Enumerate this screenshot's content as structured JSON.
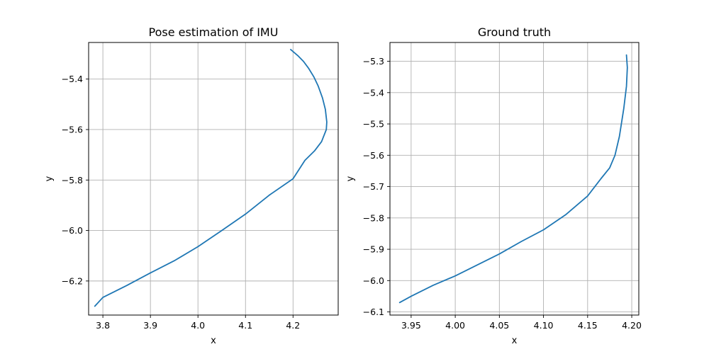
{
  "chart_data": [
    {
      "type": "line",
      "title": "Pose estimation of IMU",
      "xlabel": "x",
      "ylabel": "y",
      "xlim": [
        3.77,
        4.295
      ],
      "ylim": [
        -6.335,
        -5.255
      ],
      "xticks": [
        3.8,
        3.9,
        4.0,
        4.1,
        4.2
      ],
      "xtick_labels": [
        "3.8",
        "3.9",
        "4.0",
        "4.1",
        "4.2"
      ],
      "yticks": [
        -6.2,
        -6.0,
        -5.8,
        -5.6,
        -5.4
      ],
      "ytick_labels": [
        "−6.2",
        "−6.0",
        "−5.8",
        "−5.6",
        "−5.4"
      ],
      "grid": true,
      "series": [
        {
          "color": "#1f77b4",
          "points": [
            [
              4.195,
              -5.283
            ],
            [
              4.21,
              -5.307
            ],
            [
              4.222,
              -5.33
            ],
            [
              4.233,
              -5.358
            ],
            [
              4.244,
              -5.392
            ],
            [
              4.253,
              -5.428
            ],
            [
              4.262,
              -5.475
            ],
            [
              4.268,
              -5.52
            ],
            [
              4.271,
              -5.57
            ],
            [
              4.27,
              -5.6
            ],
            [
              4.26,
              -5.648
            ],
            [
              4.245,
              -5.685
            ],
            [
              4.225,
              -5.722
            ],
            [
              4.2,
              -5.795
            ],
            [
              4.15,
              -5.86
            ],
            [
              4.1,
              -5.935
            ],
            [
              4.05,
              -6.0
            ],
            [
              4.0,
              -6.064
            ],
            [
              3.95,
              -6.12
            ],
            [
              3.9,
              -6.168
            ],
            [
              3.85,
              -6.218
            ],
            [
              3.8,
              -6.265
            ],
            [
              3.783,
              -6.3
            ]
          ]
        }
      ]
    },
    {
      "type": "line",
      "title": "Ground truth",
      "xlabel": "x",
      "ylabel": "y",
      "xlim": [
        3.926,
        4.208
      ],
      "ylim": [
        -6.11,
        -5.24
      ],
      "xticks": [
        3.95,
        4.0,
        4.05,
        4.1,
        4.15,
        4.2
      ],
      "xtick_labels": [
        "3.95",
        "4.00",
        "4.05",
        "4.10",
        "4.15",
        "4.20"
      ],
      "yticks": [
        -6.1,
        -6.0,
        -5.9,
        -5.8,
        -5.7,
        -5.6,
        -5.5,
        -5.4,
        -5.3
      ],
      "ytick_labels": [
        "−6.1",
        "−6.0",
        "−5.9",
        "−5.8",
        "−5.7",
        "−5.6",
        "−5.5",
        "−5.4",
        "−5.3"
      ],
      "grid": true,
      "series": [
        {
          "color": "#1f77b4",
          "points": [
            [
              4.194,
              -5.28
            ],
            [
              4.195,
              -5.32
            ],
            [
              4.194,
              -5.38
            ],
            [
              4.191,
              -5.45
            ],
            [
              4.186,
              -5.54
            ],
            [
              4.181,
              -5.6
            ],
            [
              4.175,
              -5.64
            ],
            [
              4.165,
              -5.675
            ],
            [
              4.15,
              -5.73
            ],
            [
              4.125,
              -5.79
            ],
            [
              4.1,
              -5.838
            ],
            [
              4.075,
              -5.875
            ],
            [
              4.05,
              -5.915
            ],
            [
              4.025,
              -5.95
            ],
            [
              4.0,
              -5.985
            ],
            [
              3.975,
              -6.015
            ],
            [
              3.95,
              -6.05
            ],
            [
              3.937,
              -6.07
            ]
          ]
        }
      ]
    }
  ]
}
